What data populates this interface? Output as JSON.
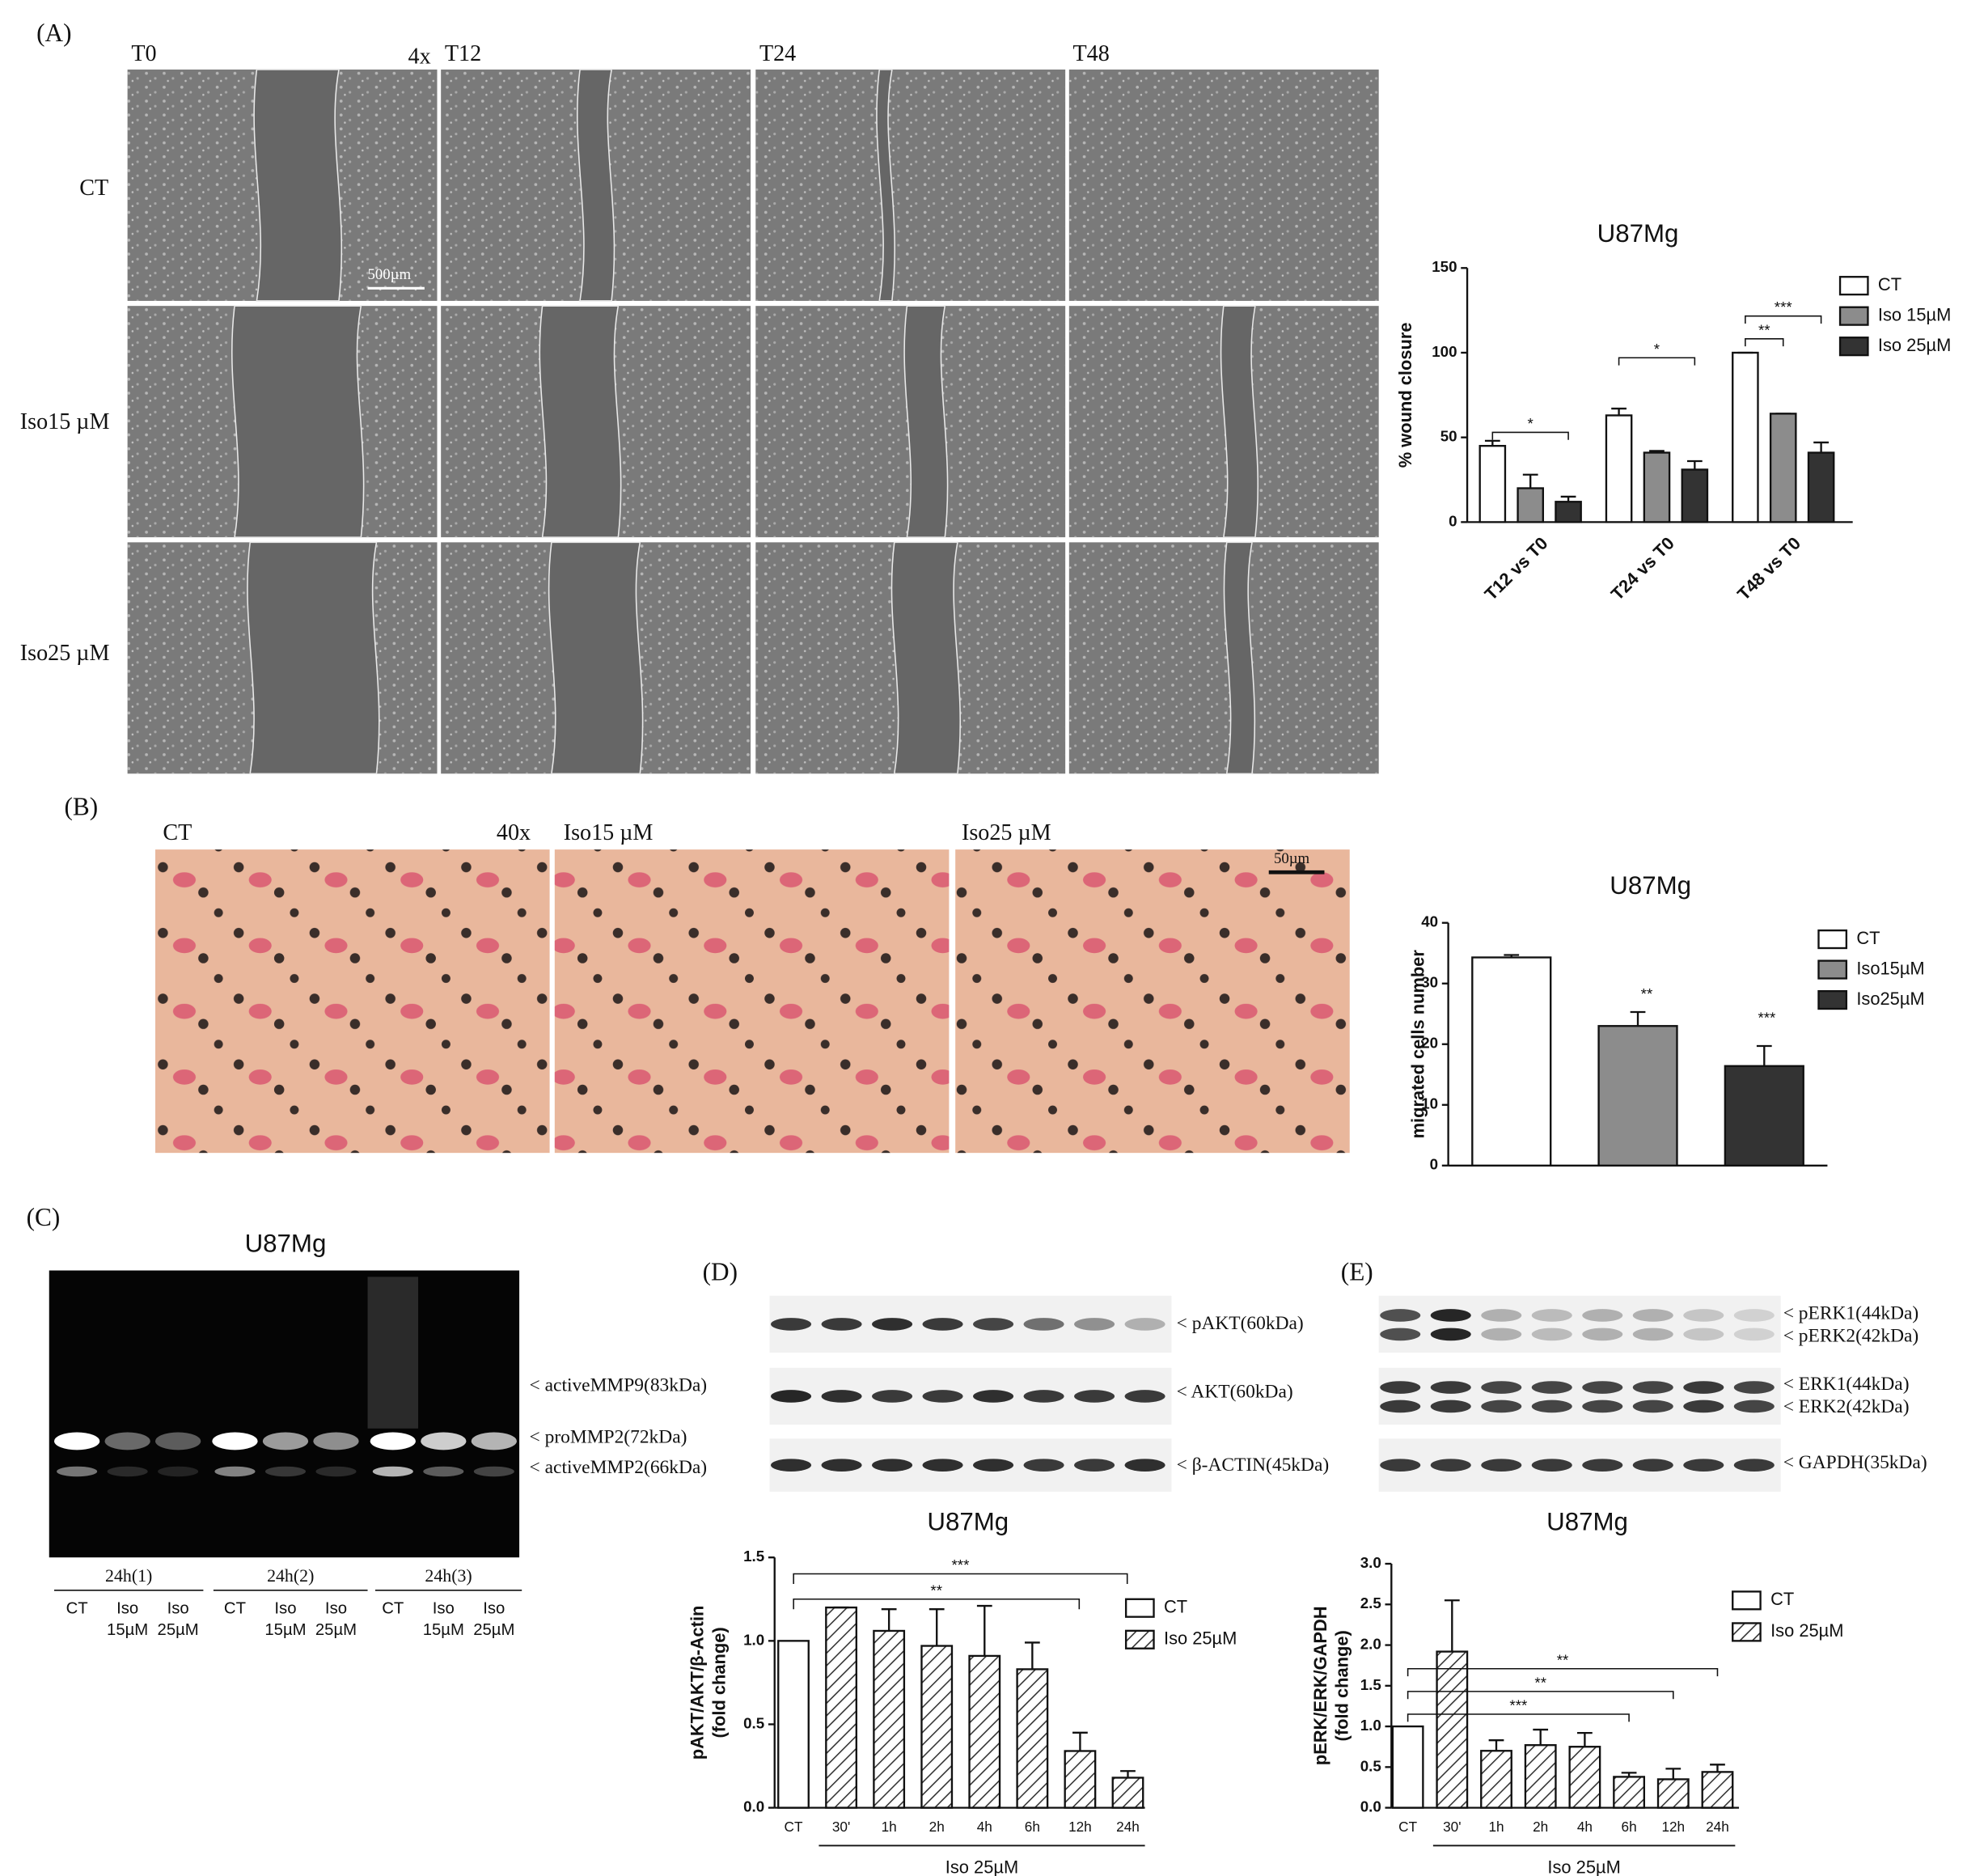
{
  "figure": {
    "panel_a": {
      "label": "(A)",
      "magnification": "4x",
      "timepoints": [
        "T0",
        "T12",
        "T24",
        "T48"
      ],
      "conditions": [
        "CT",
        "Iso15 µM",
        "Iso25 µM"
      ],
      "scale_bar": "500µm"
    },
    "panel_b": {
      "label": "(B)",
      "magnification": "40x",
      "conditions": [
        "CT",
        "Iso15 µM",
        "Iso25 µM"
      ],
      "scale_bar": "50µm"
    },
    "panel_c": {
      "label": "(C)",
      "title": "U87Mg",
      "bands": [
        "< activeMMP9(83kDa)",
        "< proMMP2(72kDa)",
        "< activeMMP2(66kDa)"
      ],
      "groups": [
        "24h(1)",
        "24h(2)",
        "24h(3)"
      ],
      "lanes": [
        [
          "CT"
        ],
        [
          "Iso",
          "15µM"
        ],
        [
          "Iso",
          "25µM"
        ]
      ]
    },
    "panel_d": {
      "label": "(D)",
      "bands": [
        "< pAKT(60kDa)",
        "< AKT(60kDa)",
        "< β-ACTIN(45kDa)"
      ]
    },
    "panel_e": {
      "label": "(E)",
      "bands": [
        "< pERK1(44kDa)",
        "< pERK2(42kDa)",
        "< ERK1(44kDa)",
        "< ERK2(42kDa)",
        "< GAPDH(35kDa)"
      ]
    }
  },
  "chart_data": [
    {
      "type": "bar",
      "title": "U87Mg",
      "ylabel": "% wound closure",
      "categories": [
        "T12 vs T0",
        "T24 vs T0",
        "T48 vs T0"
      ],
      "series": [
        {
          "name": "CT",
          "color": "#ffffff",
          "values": [
            45,
            63,
            100
          ],
          "errors": [
            3,
            4,
            0
          ]
        },
        {
          "name": "Iso 15µM",
          "color": "#8c8c8c",
          "values": [
            20,
            41,
            64
          ],
          "errors": [
            8,
            1,
            0
          ]
        },
        {
          "name": "Iso 25µM",
          "color": "#333333",
          "values": [
            12,
            31,
            41
          ],
          "errors": [
            3,
            5,
            6
          ]
        }
      ],
      "ylim": [
        0,
        150
      ],
      "yticks": [
        0,
        50,
        100,
        150
      ],
      "annotations": [
        "*",
        "*",
        "**",
        "***"
      ]
    },
    {
      "type": "bar",
      "title": "U87Mg",
      "ylabel": "migrated cells number",
      "series": [
        {
          "name": "CT",
          "color": "#ffffff",
          "values": [
            34.3
          ],
          "errors": [
            0.4
          ]
        },
        {
          "name": "Iso15µM",
          "color": "#8c8c8c",
          "values": [
            23
          ],
          "errors": [
            2.3
          ]
        },
        {
          "name": "Iso25µM",
          "color": "#333333",
          "values": [
            16.4
          ],
          "errors": [
            3.3
          ]
        }
      ],
      "ylim": [
        0,
        40
      ],
      "yticks": [
        0,
        10,
        20,
        30,
        40
      ],
      "annotations": [
        "**",
        "***"
      ]
    },
    {
      "type": "bar",
      "title": "U87Mg",
      "ylabel": [
        "pAKT/AKT/β-Actin",
        "(fold change)"
      ],
      "xlabel": "Iso 25µM",
      "categories": [
        "CT",
        "30'",
        "1h",
        "2h",
        "4h",
        "6h",
        "12h",
        "24h"
      ],
      "series": [
        {
          "name": "CT",
          "color": "#ffffff",
          "values": [
            1.0,
            null,
            null,
            null,
            null,
            null,
            null,
            null
          ],
          "errors": [
            null,
            null,
            null,
            null,
            null,
            null,
            null,
            null
          ]
        },
        {
          "name": "Iso 25µM",
          "color": "#333333",
          "hatch": true,
          "values": [
            null,
            1.2,
            1.06,
            0.97,
            0.91,
            0.83,
            0.34,
            0.18
          ],
          "errors": [
            null,
            0,
            0.13,
            0.22,
            0.3,
            0.16,
            0.11,
            0.04
          ]
        }
      ],
      "ylim": [
        0,
        1.5
      ],
      "yticks": [
        {
          "value": 0,
          "label": "0.0"
        },
        {
          "value": 0.5,
          "label": "0.5"
        },
        {
          "value": 1,
          "label": "1.0"
        },
        {
          "value": 1.5,
          "label": "1.5"
        }
      ],
      "annotations": [
        "***",
        "**"
      ]
    },
    {
      "type": "bar",
      "title": "U87Mg",
      "ylabel": [
        "pERK/ERK/GAPDH",
        "(fold change)"
      ],
      "xlabel": "Iso 25µM",
      "categories": [
        "CT",
        "30'",
        "1h",
        "2h",
        "4h",
        "6h",
        "12h",
        "24h"
      ],
      "series": [
        {
          "name": "CT",
          "color": "#ffffff",
          "values": [
            1.0,
            null,
            null,
            null,
            null,
            null,
            null,
            null
          ],
          "errors": [
            null,
            null,
            null,
            null,
            null,
            null,
            null,
            null
          ]
        },
        {
          "name": "Iso 25µM",
          "color": "#333333",
          "hatch": true,
          "values": [
            null,
            1.92,
            0.7,
            0.77,
            0.75,
            0.38,
            0.35,
            0.44
          ],
          "errors": [
            null,
            0.63,
            0.13,
            0.19,
            0.17,
            0.05,
            0.13,
            0.09
          ]
        }
      ],
      "ylim": [
        0,
        3
      ],
      "yticks": [
        {
          "value": 0,
          "label": "0.0"
        },
        {
          "value": 0.5,
          "label": "0.5"
        },
        {
          "value": 1,
          "label": "1.0"
        },
        {
          "value": 1.5,
          "label": "1.5"
        },
        {
          "value": 2,
          "label": "2.0"
        },
        {
          "value": 2.5,
          "label": "2.5"
        },
        {
          "value": 3,
          "label": "3.0"
        }
      ],
      "annotations": [
        "**",
        "**",
        "***"
      ]
    }
  ]
}
